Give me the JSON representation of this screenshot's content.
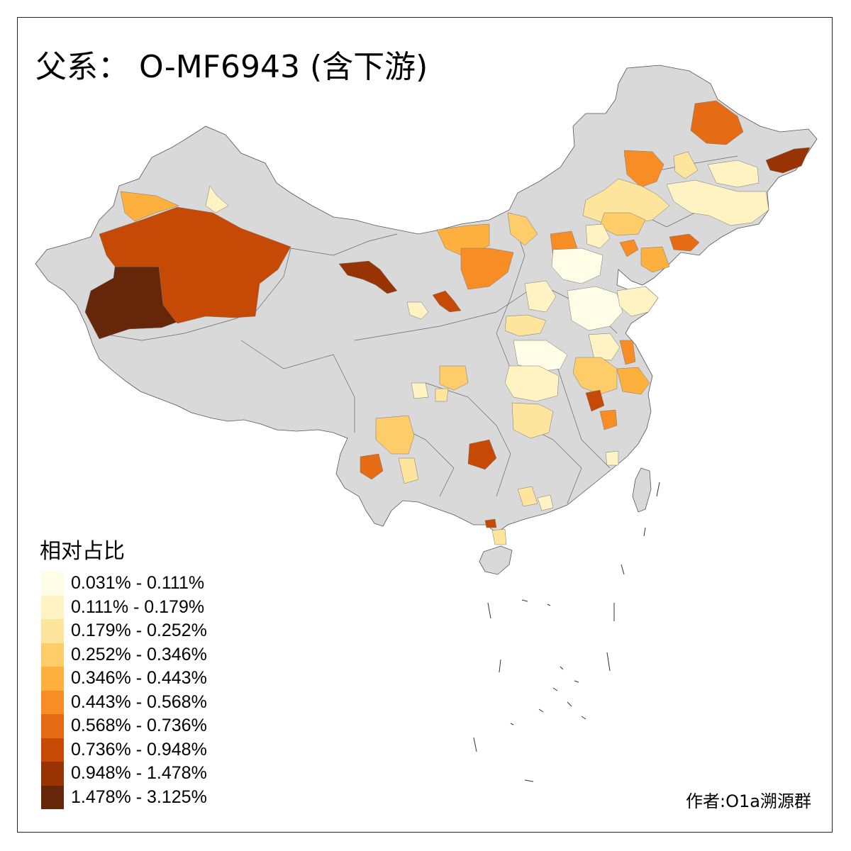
{
  "title": "父系： O-MF6943 (含下游)",
  "legend": {
    "title": "相对占比",
    "items": [
      {
        "label": "0.031% - 0.111%",
        "color": "#fffde6"
      },
      {
        "label": "0.111% - 0.179%",
        "color": "#fff3c4"
      },
      {
        "label": "0.179% - 0.252%",
        "color": "#fee59d"
      },
      {
        "label": "0.252% - 0.346%",
        "color": "#fecd6a"
      },
      {
        "label": "0.346% - 0.443%",
        "color": "#feb03f"
      },
      {
        "label": "0.443% - 0.568%",
        "color": "#f88d25"
      },
      {
        "label": "0.568% - 0.736%",
        "color": "#e56b15"
      },
      {
        "label": "0.736% - 0.948%",
        "color": "#c64a05"
      },
      {
        "label": "0.948% - 1.478%",
        "color": "#983404"
      },
      {
        "label": "1.478% - 3.125%",
        "color": "#66260a"
      }
    ]
  },
  "no_data_color": "#d9d9d9",
  "credit": "作者:O1a溯源群"
}
